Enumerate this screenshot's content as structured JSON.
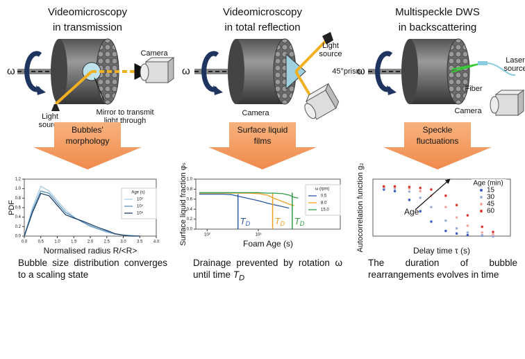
{
  "panels": [
    {
      "title": [
        "Videomicroscopy",
        "in transmission"
      ],
      "omega": "ω",
      "labels": [
        [
          "Camera"
        ],
        [
          "Light",
          "source"
        ],
        [
          "Mirror to transmit",
          "light through"
        ]
      ],
      "arrow": [
        "Bubbles'",
        "morphology"
      ],
      "caption": "Bubble size distribution converges to a scaling state"
    },
    {
      "title": [
        "Videomicroscopy",
        "in total reflection"
      ],
      "omega": "ω",
      "labels": [
        [
          "Light",
          "source"
        ],
        [
          "45°prism"
        ],
        [
          "Camera"
        ]
      ],
      "arrow": [
        "Surface liquid",
        "films"
      ],
      "caption": "Drainage prevented by rotation ω until time",
      "caption_symbol": "T",
      "caption_subscript": "D"
    },
    {
      "title": [
        "Multispeckle DWS",
        "in backscattering"
      ],
      "omega": "ω",
      "labels": [
        [
          "Laser",
          "source"
        ],
        [
          "Fiber"
        ],
        [
          "Camera"
        ]
      ],
      "arrow": [
        "Speckle",
        "fluctuations"
      ],
      "caption": "The duration of bubble rearrangements evolves in time"
    }
  ],
  "chart_data": [
    {
      "type": "line",
      "xlabel": "Normalised radius R/<R>",
      "ylabel": "PDF",
      "xlim": [
        0,
        4
      ],
      "ylim": [
        0,
        1.2
      ],
      "xticks": [
        {
          "value": 0,
          "label": "0.0"
        },
        0.5,
        {
          "value": 1,
          "label": "1.0"
        },
        1.5,
        {
          "value": 2,
          "label": "2.0"
        },
        2.5,
        {
          "value": 3,
          "label": "3.0"
        },
        3.5,
        {
          "value": 4,
          "label": "4.0"
        }
      ],
      "yticks": [
        {
          "value": 0,
          "label": "0.0"
        },
        0.2,
        0.4,
        0.6,
        0.8,
        {
          "value": 1,
          "label": "1.0"
        },
        1.2
      ],
      "legend_title": "Age (s)",
      "legend": "right",
      "x": [
        0,
        0.25,
        0.5,
        0.75,
        1,
        1.25,
        1.5,
        1.75,
        2,
        2.25,
        2.5,
        2.75,
        3,
        3.25,
        3.5
      ],
      "series": [
        {
          "name": "10³",
          "color": "#a9cbe3",
          "values": [
            0,
            0.6,
            1.05,
            0.95,
            0.75,
            0.55,
            0.4,
            0.3,
            0.2,
            0.15,
            0.08,
            0.04,
            0.02,
            0.01,
            0
          ]
        },
        {
          "name": "10⁴",
          "color": "#5b92bd",
          "values": [
            0,
            0.55,
            0.95,
            0.9,
            0.7,
            0.5,
            0.4,
            0.3,
            0.22,
            0.15,
            0.1,
            0.05,
            0.02,
            0.01,
            0
          ]
        },
        {
          "name": "10⁵",
          "color": "#1f3f66",
          "values": [
            0,
            0.5,
            0.9,
            0.85,
            0.65,
            0.45,
            0.38,
            0.32,
            0.25,
            0.18,
            0.12,
            0.05,
            0.02,
            0,
            0
          ]
        }
      ]
    },
    {
      "type": "line",
      "xlabel": "Foam Age (s)",
      "ylabel": "Surface liquid fraction φₛ",
      "xlog": true,
      "xlim": [
        60,
        40000
      ],
      "ylim": [
        0,
        1
      ],
      "xticks": [
        {
          "value": 100,
          "label": "10²"
        },
        {
          "value": 1000,
          "label": "10³"
        }
      ],
      "yticks": [
        {
          "value": 0,
          "label": "0.0"
        },
        0.2,
        0.4,
        0.6,
        0.8,
        {
          "value": 1,
          "label": "1.0"
        }
      ],
      "legend_title": "ω (rpm)",
      "legend": "right",
      "drain_label": {
        "symbol": "T",
        "subscript": "D"
      },
      "x": [
        70,
        100,
        150,
        200,
        300,
        400,
        600,
        1000,
        1500,
        2000,
        3000,
        4000,
        5000,
        6000
      ],
      "series": [
        {
          "name": "0.5",
          "color": "#2b5aa8",
          "drain_time": 400,
          "values": [
            0.7,
            0.7,
            0.7,
            0.7,
            0.69,
            0.66,
            0.62,
            0.57,
            0.52,
            0.49,
            0.45,
            0.42,
            null,
            null
          ]
        },
        {
          "name": "8.0",
          "color": "#f0a020",
          "drain_time": 1900,
          "values": [
            0.72,
            0.72,
            0.72,
            0.72,
            0.72,
            0.72,
            0.72,
            0.71,
            0.68,
            0.62,
            0.55,
            0.5,
            0.47,
            null
          ]
        },
        {
          "name": "15.0",
          "color": "#2e9a4a",
          "drain_time": 4600,
          "values": [
            0.73,
            0.73,
            0.73,
            0.73,
            0.73,
            0.73,
            0.73,
            0.73,
            0.72,
            0.72,
            0.71,
            0.68,
            0.64,
            0.62
          ]
        }
      ]
    },
    {
      "type": "scatter",
      "xlabel": "Delay time τ (s)",
      "ylabel": "Autocorrelation function g₂",
      "xlog": true,
      "xlim": [
        0.05,
        300
      ],
      "ylim": [
        0,
        1.1
      ],
      "legend_title": "Age (min)",
      "legend": "upper right",
      "annotation": "Age",
      "x": [
        0.1,
        0.2,
        0.5,
        1,
        2,
        5,
        10,
        20,
        50,
        100
      ],
      "series": [
        {
          "name": "15",
          "color": "#3a5fc0",
          "values": [
            0.9,
            0.87,
            0.7,
            0.48,
            0.28,
            0.1,
            0.05,
            0.02,
            0.01,
            0
          ]
        },
        {
          "name": "30",
          "color": "#9fb0d8",
          "values": [
            0.93,
            0.92,
            0.86,
            0.74,
            0.56,
            0.3,
            0.15,
            0.07,
            0.02,
            0.01
          ]
        },
        {
          "name": "45",
          "color": "#f0a8a0",
          "values": [
            0.95,
            0.94,
            0.92,
            0.87,
            0.78,
            0.56,
            0.36,
            0.2,
            0.07,
            0.03
          ]
        },
        {
          "name": "60",
          "color": "#d83a30",
          "values": [
            0.96,
            0.96,
            0.95,
            0.93,
            0.9,
            0.78,
            0.6,
            0.4,
            0.18,
            0.08
          ]
        }
      ]
    }
  ]
}
